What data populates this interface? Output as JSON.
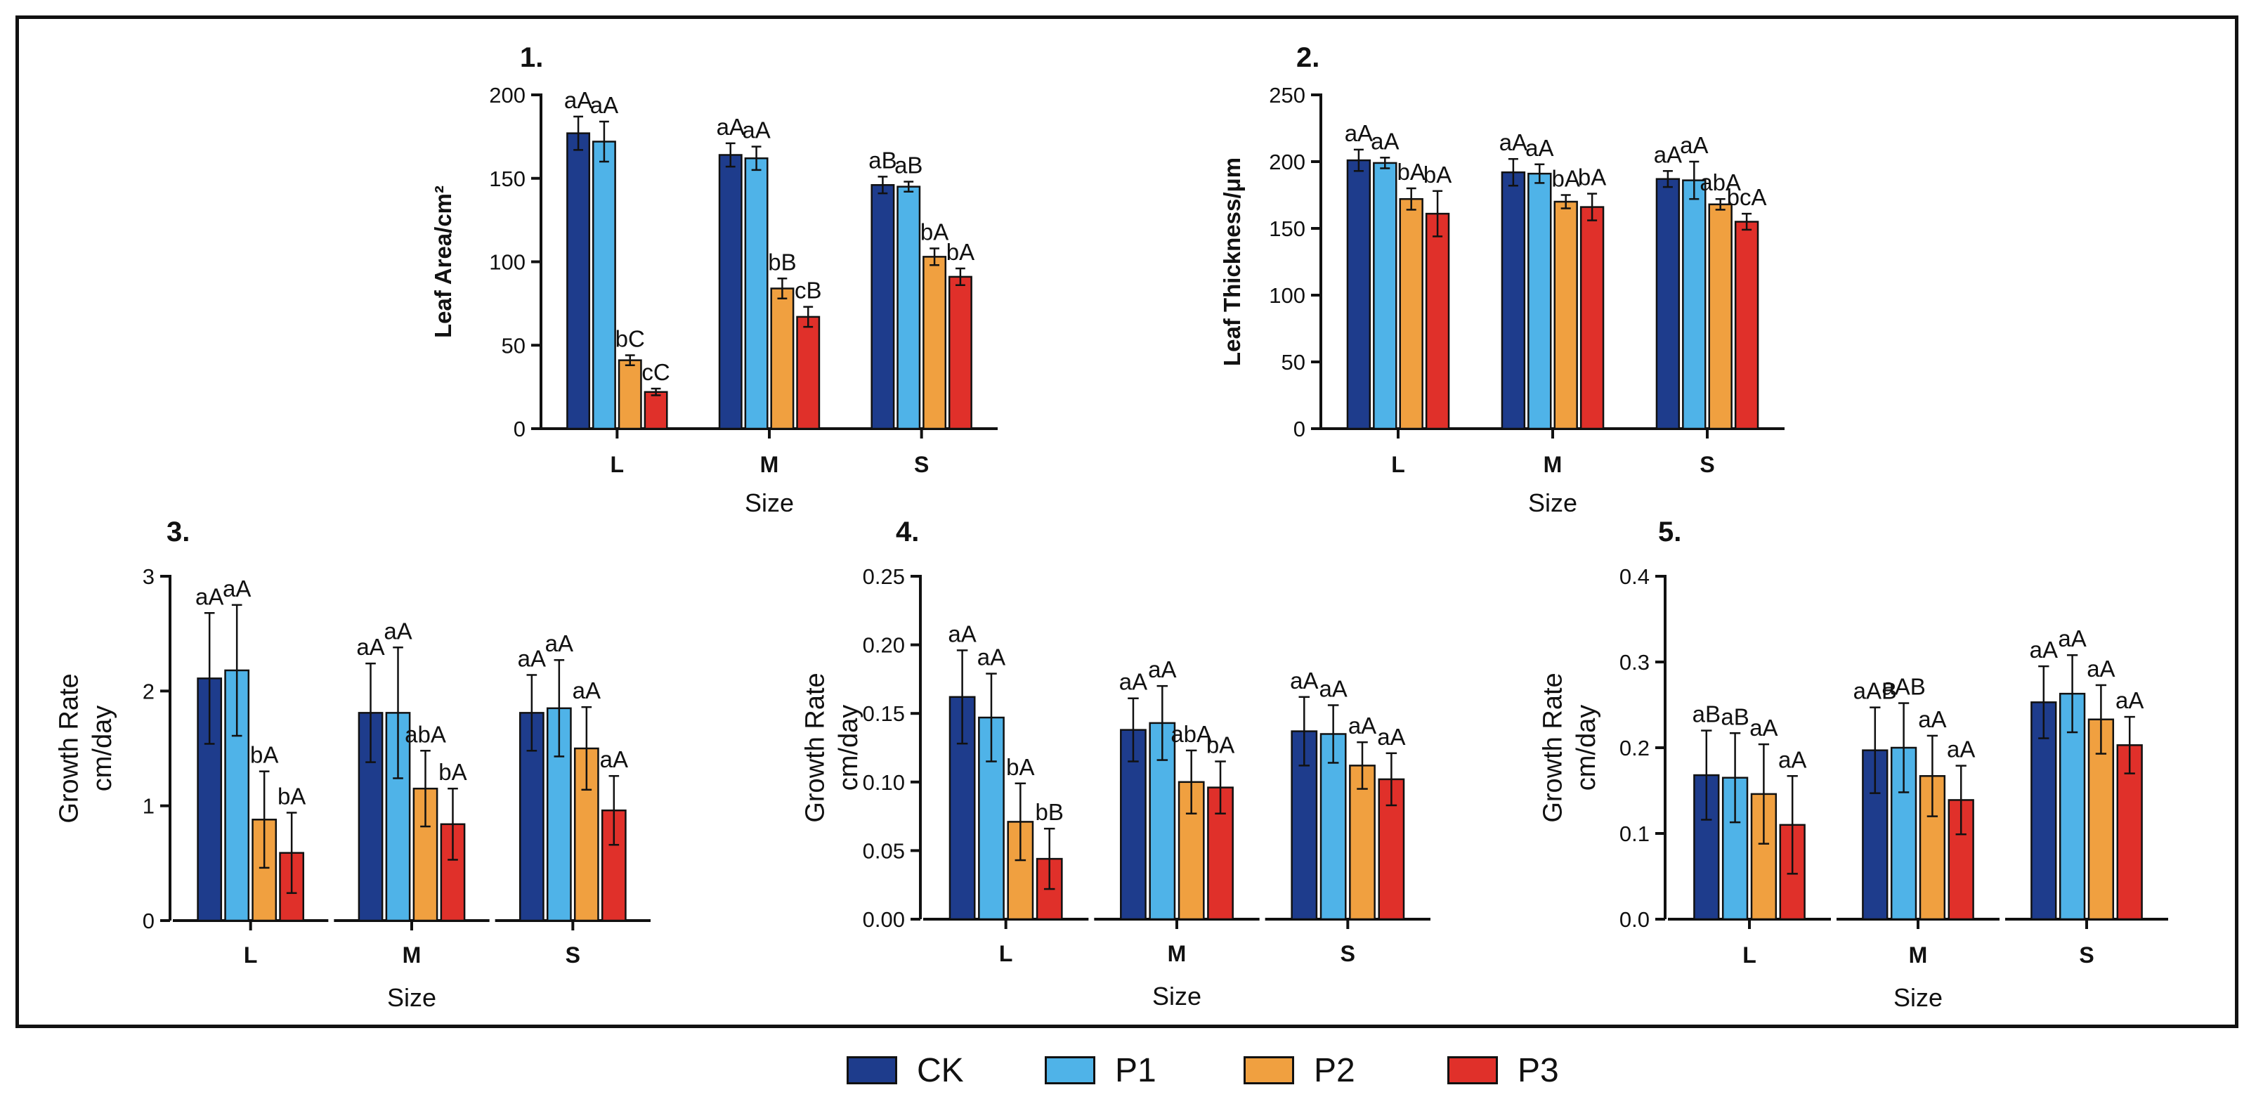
{
  "colors": {
    "CK": "#1e3c8c",
    "P1": "#4fb3e8",
    "P2": "#f0a040",
    "P3": "#e0302a"
  },
  "legend": [
    {
      "key": "CK",
      "label": "CK"
    },
    {
      "key": "P1",
      "label": "P1"
    },
    {
      "key": "P2",
      "label": "P2"
    },
    {
      "key": "P3",
      "label": "P3"
    }
  ],
  "chart_data": [
    {
      "type": "bar",
      "title": "1.",
      "xlabel": "Size",
      "ylabel": "Leaf Area/cm²",
      "categories": [
        "L",
        "M",
        "S"
      ],
      "ylim": [
        0,
        200
      ],
      "yticks": [
        "0",
        "50",
        "100",
        "150",
        "200"
      ],
      "series": [
        {
          "name": "CK",
          "values": [
            177,
            164,
            146
          ],
          "errors": [
            10,
            7,
            5
          ],
          "labels": [
            "aA",
            "aA",
            "aB"
          ]
        },
        {
          "name": "P1",
          "values": [
            172,
            162,
            145
          ],
          "errors": [
            12,
            7,
            3
          ],
          "labels": [
            "aA",
            "aA",
            "aB"
          ]
        },
        {
          "name": "P2",
          "values": [
            41,
            84,
            103
          ],
          "errors": [
            3,
            6,
            5
          ],
          "labels": [
            "bC",
            "bB",
            "bA"
          ]
        },
        {
          "name": "P3",
          "values": [
            22,
            67,
            91
          ],
          "errors": [
            2,
            6,
            5
          ],
          "labels": [
            "cC",
            "cB",
            "bA"
          ]
        }
      ]
    },
    {
      "type": "bar",
      "title": "2.",
      "xlabel": "Size",
      "ylabel": "Leaf Thickness/μm",
      "categories": [
        "L",
        "M",
        "S"
      ],
      "ylim": [
        0,
        250
      ],
      "yticks": [
        "0",
        "50",
        "100",
        "150",
        "200",
        "250"
      ],
      "series": [
        {
          "name": "CK",
          "values": [
            201,
            192,
            187
          ],
          "errors": [
            8,
            10,
            6
          ],
          "labels": [
            "aA",
            "aA",
            "aA"
          ]
        },
        {
          "name": "P1",
          "values": [
            199,
            191,
            186
          ],
          "errors": [
            4,
            7,
            14
          ],
          "labels": [
            "aA",
            "aA",
            "aA"
          ]
        },
        {
          "name": "P2",
          "values": [
            172,
            170,
            168
          ],
          "errors": [
            8,
            5,
            4
          ],
          "labels": [
            "bA",
            "bA",
            "abA"
          ]
        },
        {
          "name": "P3",
          "values": [
            161,
            166,
            155
          ],
          "errors": [
            17,
            10,
            6
          ],
          "labels": [
            "bA",
            "bA",
            "bcA"
          ]
        }
      ]
    },
    {
      "type": "bar",
      "title": "3.",
      "xlabel": "Size",
      "ylabel": "Growth Rate cm/day",
      "categories": [
        "L",
        "M",
        "S"
      ],
      "ylim": [
        0,
        3
      ],
      "yticks": [
        "0",
        "1",
        "2",
        "3"
      ],
      "series": [
        {
          "name": "CK",
          "values": [
            2.11,
            1.81,
            1.81
          ],
          "errors": [
            0.57,
            0.43,
            0.33
          ],
          "labels": [
            "aA",
            "aA",
            "aA"
          ]
        },
        {
          "name": "P1",
          "values": [
            2.18,
            1.81,
            1.85
          ],
          "errors": [
            0.57,
            0.57,
            0.42
          ],
          "labels": [
            "aA",
            "aA",
            "aA"
          ]
        },
        {
          "name": "P2",
          "values": [
            0.88,
            1.15,
            1.5
          ],
          "errors": [
            0.42,
            0.33,
            0.36
          ],
          "labels": [
            "bA",
            "abA",
            "aA"
          ]
        },
        {
          "name": "P3",
          "values": [
            0.59,
            0.84,
            0.96
          ],
          "errors": [
            0.35,
            0.31,
            0.3
          ],
          "labels": [
            "bA",
            "bA",
            "aA"
          ]
        }
      ]
    },
    {
      "type": "bar",
      "title": "4.",
      "xlabel": "Size",
      "ylabel": "Growth Rate cm/day",
      "categories": [
        "L",
        "M",
        "S"
      ],
      "ylim": [
        0,
        0.25
      ],
      "yticks": [
        "0.00",
        "0.05",
        "0.10",
        "0.15",
        "0.20",
        "0.25"
      ],
      "series": [
        {
          "name": "CK",
          "values": [
            0.162,
            0.138,
            0.137
          ],
          "errors": [
            0.034,
            0.023,
            0.025
          ],
          "labels": [
            "aA",
            "aA",
            "aA"
          ]
        },
        {
          "name": "P1",
          "values": [
            0.147,
            0.143,
            0.135
          ],
          "errors": [
            0.032,
            0.027,
            0.021
          ],
          "labels": [
            "aA",
            "aA",
            "aA"
          ]
        },
        {
          "name": "P2",
          "values": [
            0.071,
            0.1,
            0.112
          ],
          "errors": [
            0.028,
            0.023,
            0.017
          ],
          "labels": [
            "bA",
            "abA",
            "aA"
          ]
        },
        {
          "name": "P3",
          "values": [
            0.044,
            0.096,
            0.102
          ],
          "errors": [
            0.022,
            0.019,
            0.019
          ],
          "labels": [
            "bB",
            "bA",
            "aA"
          ]
        }
      ]
    },
    {
      "type": "bar",
      "title": "5.",
      "xlabel": "Size",
      "ylabel": "Growth Rate cm/day",
      "categories": [
        "L",
        "M",
        "S"
      ],
      "ylim": [
        0,
        0.4
      ],
      "yticks": [
        "0.0",
        "0.1",
        "0.2",
        "0.3",
        "0.4"
      ],
      "series": [
        {
          "name": "CK",
          "values": [
            0.168,
            0.197,
            0.253
          ],
          "errors": [
            0.052,
            0.05,
            0.042
          ],
          "labels": [
            "aB",
            "aAB",
            "aA"
          ]
        },
        {
          "name": "P1",
          "values": [
            0.165,
            0.2,
            0.263
          ],
          "errors": [
            0.052,
            0.052,
            0.045
          ],
          "labels": [
            "aB",
            "aAB",
            "aA"
          ]
        },
        {
          "name": "P2",
          "values": [
            0.146,
            0.167,
            0.233
          ],
          "errors": [
            0.058,
            0.047,
            0.04
          ],
          "labels": [
            "aA",
            "aA",
            "aA"
          ]
        },
        {
          "name": "P3",
          "values": [
            0.11,
            0.139,
            0.203
          ],
          "errors": [
            0.057,
            0.04,
            0.033
          ],
          "labels": [
            "aA",
            "aA",
            "aA"
          ]
        }
      ]
    }
  ]
}
